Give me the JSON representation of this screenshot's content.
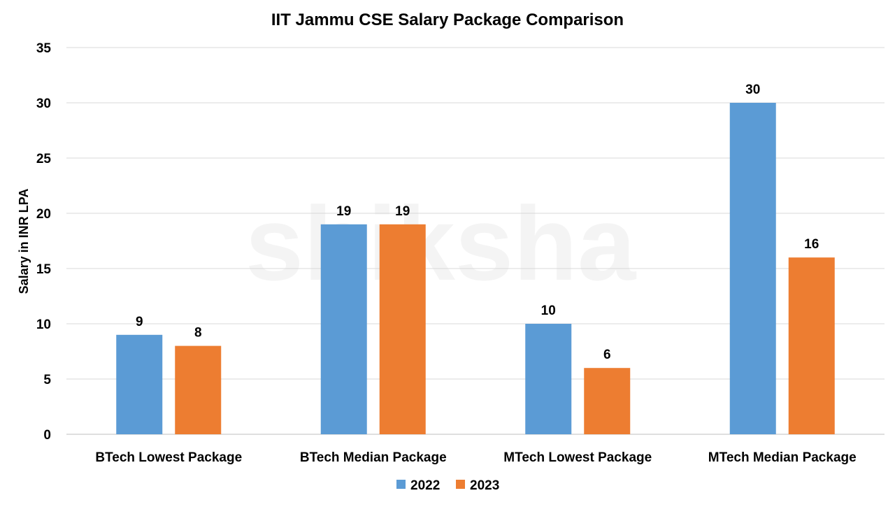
{
  "watermark": "shiksha",
  "chart_data": {
    "type": "bar",
    "title": "IIT Jammu CSE Salary Package Comparison",
    "xlabel": "",
    "ylabel": "Salary in INR LPA",
    "ylim": [
      0,
      35
    ],
    "yticks": [
      0,
      5,
      10,
      15,
      20,
      25,
      30,
      35
    ],
    "grid": true,
    "legend_position": "bottom",
    "categories": [
      "BTech Lowest Package",
      "BTech Median Package",
      "MTech Lowest Package",
      "MTech Median Package"
    ],
    "series": [
      {
        "name": "2022",
        "color": "#5B9BD5",
        "values": [
          9,
          19,
          10,
          30
        ]
      },
      {
        "name": "2023",
        "color": "#ED7D31",
        "values": [
          8,
          19,
          6,
          16
        ]
      }
    ]
  }
}
